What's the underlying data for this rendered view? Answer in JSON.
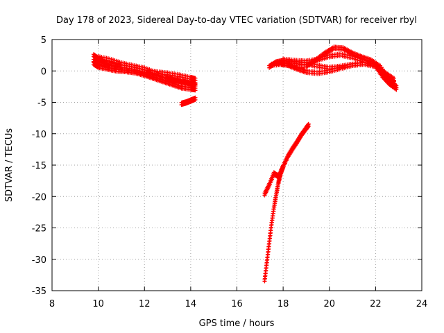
{
  "chart_data": {
    "type": "scatter",
    "title": "Day 178 of 2023, Sidereal Day-to-day VTEC variation (SDTVAR) for receiver rbyl",
    "xlabel": "GPS time / hours",
    "ylabel": "SDTVAR / TECUs",
    "xlim": [
      8,
      24
    ],
    "ylim": [
      -35,
      5
    ],
    "xticks": [
      8,
      10,
      12,
      14,
      16,
      18,
      20,
      22,
      24
    ],
    "yticks": [
      5,
      0,
      -5,
      -10,
      -15,
      -20,
      -25,
      -30,
      -35
    ],
    "grid": true,
    "marker": "+",
    "color": "#ff0000",
    "series": [
      {
        "name": "morning-arc-1",
        "x": [
          9.8,
          10.0,
          10.3,
          10.7,
          11.0,
          11.5,
          12.0,
          12.5,
          13.0,
          13.5,
          14.0,
          14.2
        ],
        "y": [
          2.3,
          1.8,
          1.2,
          0.8,
          0.6,
          0.3,
          -0.2,
          -0.4,
          -0.6,
          -0.9,
          -1.3,
          -1.5
        ]
      },
      {
        "name": "morning-arc-2",
        "x": [
          9.8,
          10.1,
          10.5,
          11.0,
          11.5,
          12.0,
          12.4,
          12.8,
          13.2,
          13.6,
          14.0,
          14.2
        ],
        "y": [
          1.5,
          1.0,
          0.5,
          0.2,
          -0.1,
          -0.5,
          -1.0,
          -1.4,
          -1.8,
          -2.0,
          -2.1,
          -2.2
        ]
      },
      {
        "name": "morning-arc-3",
        "x": [
          9.8,
          10.0,
          10.4,
          10.8,
          11.2,
          11.6,
          12.0,
          12.4,
          12.8,
          13.2,
          13.6,
          14.0,
          14.2
        ],
        "y": [
          1.0,
          0.5,
          0.2,
          -0.1,
          -0.2,
          -0.4,
          -0.8,
          -1.3,
          -1.8,
          -2.3,
          -2.8,
          -3.0,
          -3.1
        ]
      },
      {
        "name": "morning-arc-4",
        "x": [
          10.0,
          10.5,
          11.0,
          11.5,
          12.0,
          12.5,
          13.0,
          13.4,
          13.8,
          14.2
        ],
        "y": [
          2.0,
          1.6,
          1.0,
          0.6,
          0.2,
          -0.5,
          -1.2,
          -1.6,
          -2.0,
          -2.4
        ]
      },
      {
        "name": "short-arc",
        "x": [
          13.6,
          13.8,
          14.0,
          14.2
        ],
        "y": [
          -5.4,
          -5.2,
          -4.9,
          -4.6
        ]
      },
      {
        "name": "afternoon-arc-1",
        "x": [
          17.4,
          17.7,
          18.0,
          18.5,
          19.0,
          19.5,
          20.0,
          20.5,
          21.0,
          21.5,
          22.0,
          22.4,
          22.8
        ],
        "y": [
          0.5,
          1.2,
          1.4,
          1.2,
          1.0,
          0.6,
          0.3,
          0.5,
          0.8,
          1.0,
          0.7,
          -0.5,
          -1.5
        ]
      },
      {
        "name": "afternoon-arc-2",
        "x": [
          17.5,
          18.0,
          18.5,
          19.0,
          19.4,
          19.8,
          20.2,
          20.6,
          21.0,
          21.4,
          21.8,
          22.2,
          22.6,
          22.9
        ],
        "y": [
          0.8,
          1.0,
          0.6,
          0.6,
          1.5,
          2.6,
          3.5,
          3.4,
          2.6,
          2.0,
          1.5,
          0.5,
          -1.5,
          -2.7
        ]
      },
      {
        "name": "afternoon-arc-3",
        "x": [
          17.8,
          18.2,
          18.6,
          19.0,
          19.5,
          20.0,
          20.5,
          21.0,
          21.5,
          22.0,
          22.3,
          22.6,
          22.9
        ],
        "y": [
          1.0,
          0.8,
          0.2,
          -0.3,
          -0.5,
          -0.2,
          0.3,
          0.8,
          1.0,
          0.6,
          -1.0,
          -2.2,
          -3.0
        ]
      },
      {
        "name": "afternoon-arc-4",
        "x": [
          18.0,
          18.5,
          19.0,
          19.5,
          20.0,
          20.5,
          21.0,
          21.5,
          22.0,
          22.4,
          22.8
        ],
        "y": [
          1.6,
          1.4,
          1.3,
          1.6,
          2.2,
          2.4,
          2.0,
          1.4,
          0.6,
          -0.8,
          -2.0
        ]
      },
      {
        "name": "descending-arc-1",
        "x": [
          17.2,
          17.4,
          17.6,
          17.8,
          18.0,
          18.2,
          18.4,
          18.6,
          18.8,
          19.0,
          19.1
        ],
        "y": [
          -19.8,
          -18.3,
          -16.5,
          -17.0,
          -15.4,
          -13.8,
          -12.6,
          -11.5,
          -10.3,
          -9.3,
          -8.8
        ]
      },
      {
        "name": "descending-arc-2",
        "x": [
          17.2,
          17.3,
          17.4,
          17.5,
          17.6,
          17.7,
          17.8,
          17.9,
          18.0
        ],
        "y": [
          -33.5,
          -30.5,
          -27.5,
          -24.5,
          -22.0,
          -19.9,
          -17.9,
          -16.4,
          -15.4
        ]
      }
    ]
  }
}
